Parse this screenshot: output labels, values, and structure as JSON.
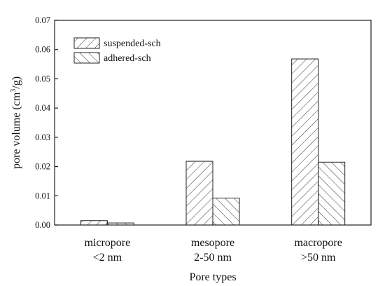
{
  "chart_data": {
    "type": "bar",
    "xlabel": "Pore types",
    "ylabel": "pore volume (cm³/g)",
    "ylabel_parts": {
      "main": "pore volume (cm",
      "sup": "3",
      "tail": "/g)"
    },
    "ylim": [
      0,
      0.07
    ],
    "yticks": [
      0,
      0.01,
      0.02,
      0.03,
      0.04,
      0.05,
      0.06,
      0.07
    ],
    "ytick_labels": [
      "0.00",
      "0.01",
      "0.02",
      "0.03",
      "0.04",
      "0.05",
      "0.06",
      "0.07"
    ],
    "categories": [
      {
        "line1": "micropore",
        "line2": "<2 nm"
      },
      {
        "line1": "mesopore",
        "line2": "2-50 nm"
      },
      {
        "line1": "macropore",
        "line2": ">50 nm"
      }
    ],
    "series": [
      {
        "name": "suspended-sch",
        "hatch": "forward-diagonal",
        "values": [
          0.0015,
          0.0218,
          0.0568
        ]
      },
      {
        "name": "adhered-sch",
        "hatch": "backward-diagonal",
        "values": [
          0.0007,
          0.0092,
          0.0215
        ]
      }
    ],
    "legend_position": "top-left",
    "grid": false
  },
  "colors": {
    "axis": "#222222",
    "hatch": "#333333",
    "background": "#ffffff"
  }
}
